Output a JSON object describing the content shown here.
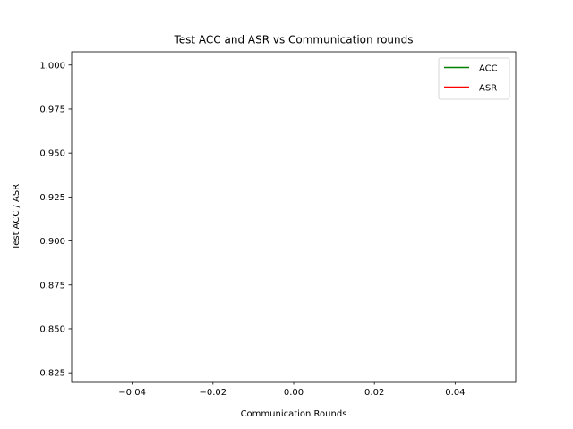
{
  "chart_data": {
    "type": "line",
    "title": "Test ACC and ASR vs Communication rounds",
    "xlabel": "Communication Rounds",
    "ylabel": "Test ACC / ASR",
    "xlim": [
      -0.055,
      0.055
    ],
    "ylim": [
      0.82,
      1.0075
    ],
    "xticks": [
      -0.04,
      -0.02,
      0.0,
      0.02,
      0.04
    ],
    "xtick_labels": [
      "−0.04",
      "−0.02",
      "0.00",
      "0.02",
      "0.04"
    ],
    "yticks": [
      0.825,
      0.85,
      0.875,
      0.9,
      0.925,
      0.95,
      0.975,
      1.0
    ],
    "ytick_labels": [
      "0.825",
      "0.850",
      "0.875",
      "0.900",
      "0.925",
      "0.950",
      "0.975",
      "1.000"
    ],
    "grid": false,
    "legend_position": "top-right",
    "series": [
      {
        "name": "ACC",
        "color": "#008000",
        "x": [],
        "y": []
      },
      {
        "name": "ASR",
        "color": "#ff0000",
        "x": [],
        "y": []
      }
    ]
  }
}
